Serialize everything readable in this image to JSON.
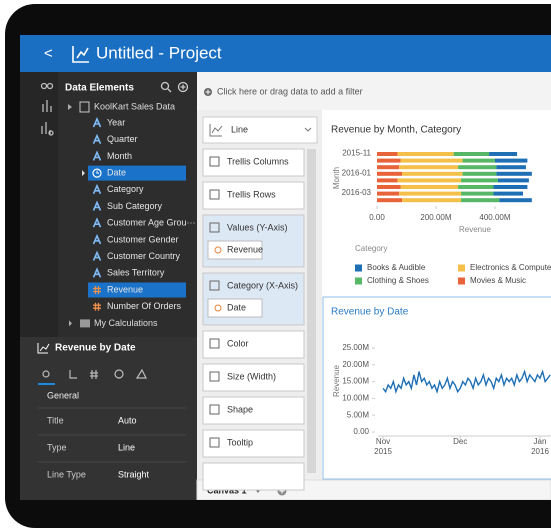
{
  "header": {
    "back": "<",
    "title": "Untitled - Project"
  },
  "data_panel": {
    "title": "Data Elements",
    "source": "KoolKart Sales Data",
    "items": [
      {
        "label": "Year",
        "kind": "attr"
      },
      {
        "label": "Quarter",
        "kind": "attr"
      },
      {
        "label": "Month",
        "kind": "attr"
      },
      {
        "label": "Date",
        "kind": "date",
        "selected": true
      },
      {
        "label": "Category",
        "kind": "attr"
      },
      {
        "label": "Sub Category",
        "kind": "attr"
      },
      {
        "label": "Customer Age Grou···",
        "kind": "attr"
      },
      {
        "label": "Customer Gender",
        "kind": "attr"
      },
      {
        "label": "Customer Country",
        "kind": "attr"
      },
      {
        "label": "Sales Territory",
        "kind": "attr"
      },
      {
        "label": "Revenue",
        "kind": "measure",
        "selected": true
      },
      {
        "label": "Number Of Orders",
        "kind": "measure"
      }
    ],
    "folder": "My Calculations"
  },
  "properties": {
    "title": "Revenue by Date",
    "section": "General",
    "rows": [
      [
        "Title",
        "Auto"
      ],
      [
        "Type",
        "Line"
      ],
      [
        "Line Type",
        "Straight"
      ]
    ]
  },
  "filter_bar": "Click here or drag data to add a filter",
  "grammar": {
    "chart_type": "Line",
    "sections": [
      {
        "label": "Trellis Columns"
      },
      {
        "label": "Trellis Rows"
      },
      {
        "label": "Values (Y-Axis)",
        "pill": "Revenue"
      },
      {
        "label": "Category (X-Axis)",
        "pill": "Date"
      },
      {
        "label": "Color"
      },
      {
        "label": "Size (Width)"
      },
      {
        "label": "Shape"
      },
      {
        "label": "Tooltip"
      }
    ]
  },
  "canvas": {
    "tab": "Canvas 1"
  },
  "chart_data": [
    {
      "type": "bar",
      "orientation": "horizontal",
      "stacked": true,
      "title": "Revenue by Month, Category",
      "y_label": "Month",
      "x_label": "Revenue",
      "legend_title": "Category",
      "categories": [
        "2015-11",
        null,
        null,
        "2016-01",
        null,
        null,
        "2016-03",
        null
      ],
      "series": [
        {
          "name": "Books & Audible",
          "color": "#1f6fb5",
          "values": [
            95,
            110,
            100,
            120,
            105,
            115,
            100,
            110
          ]
        },
        {
          "name": "Electronics & Computer",
          "color": "#f5c04a",
          "values": [
            190,
            210,
            200,
            205,
            215,
            195,
            210,
            200
          ]
        },
        {
          "name": "Clothing & Shoes",
          "color": "#56b866",
          "values": [
            120,
            110,
            130,
            115,
            125,
            120,
            110,
            130
          ]
        },
        {
          "name": "Movies & Music",
          "color": "#e8623a",
          "values": [
            70,
            80,
            75,
            85,
            70,
            80,
            75,
            85
          ]
        }
      ],
      "xlim": [
        0,
        590
      ],
      "xticks": [
        {
          "value": 0,
          "label": "0.00"
        },
        {
          "value": 200,
          "label": "200.00M"
        },
        {
          "value": 400,
          "label": "400.00M"
        }
      ]
    },
    {
      "type": "line",
      "title": "Revenue by Date",
      "y_label": "Revenue",
      "color": "#1f6fb5",
      "values": [
        13,
        12,
        14,
        13,
        15,
        12,
        14,
        13,
        16,
        14,
        15,
        13,
        17,
        14,
        18,
        15,
        16,
        14,
        15,
        13,
        14,
        12,
        15,
        13,
        14,
        16,
        13,
        15,
        14,
        12,
        13,
        15,
        14,
        16,
        15,
        13,
        16,
        14,
        15,
        17,
        14,
        16,
        15,
        13,
        16,
        15,
        17,
        14,
        16,
        15,
        16,
        14,
        17,
        15,
        16,
        18,
        15,
        17,
        16,
        15,
        17,
        16,
        18,
        15,
        16,
        17
      ],
      "xlim": [
        -2,
        65
      ],
      "xticks": [
        {
          "value": 0,
          "label": [
            "Nov",
            "2015"
          ]
        },
        {
          "value": 30,
          "label": [
            "Dec"
          ]
        },
        {
          "value": 61,
          "label": [
            "Jan",
            "2016"
          ]
        }
      ],
      "ylim": [
        0,
        25
      ],
      "yticks": [
        {
          "value": 0,
          "label": "0.00"
        },
        {
          "value": 5,
          "label": "5.00M"
        },
        {
          "value": 10,
          "label": "10.00M"
        },
        {
          "value": 15,
          "label": "15.00M"
        },
        {
          "value": 20,
          "label": "20.00M"
        },
        {
          "value": 25,
          "label": "25.00M"
        }
      ],
      "grid": false
    }
  ]
}
